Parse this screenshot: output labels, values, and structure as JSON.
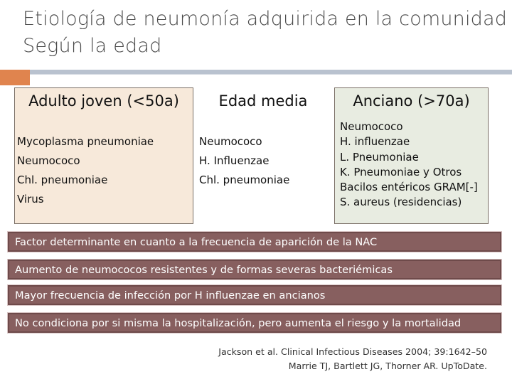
{
  "title": {
    "line1": "Etiología de neumonía adquirida en la comunidad",
    "line2": "Según la edad"
  },
  "columns": [
    {
      "header": "Adulto joven (<50a)",
      "items": [
        "Mycoplasma pneumoniae",
        "Neumococo",
        "Chl. pneumoniae",
        "Virus"
      ]
    },
    {
      "header": "Edad media",
      "items": [
        "Neumococo",
        "H. Influenzae",
        "Chl. pneumoniae"
      ]
    },
    {
      "header": "Anciano (>70a)",
      "items": [
        "Neumococo",
        "H. influenzae",
        "L. Pneumoniae",
        "K. Pneumoniae y Otros",
        "Bacilos entéricos GRAM[-]",
        "S. aureus (residencias)"
      ]
    }
  ],
  "factors": [
    "Factor determinante en cuanto a la frecuencia de aparición de la NAC",
    "Aumento de neumococos resistentes y de formas severas bacteriémicas",
    "Mayor frecuencia de infección por H influenzae en ancianos",
    "No condiciona por si misma la hospitalización, pero aumenta el riesgo y la mortalidad"
  ],
  "references": [
    "Jackson et al. Clinical Infectious Diseases 2004; 39:1642–50",
    "Marrie TJ, Bartlett JG, Thorner AR. UpToDate."
  ],
  "colors": {
    "accent_orange": "#e0844e",
    "rule_grey": "#b9c2cf",
    "col1_bg": "#f7e9da",
    "col3_bg": "#e8ece1",
    "factor_bg": "#875f5f"
  }
}
